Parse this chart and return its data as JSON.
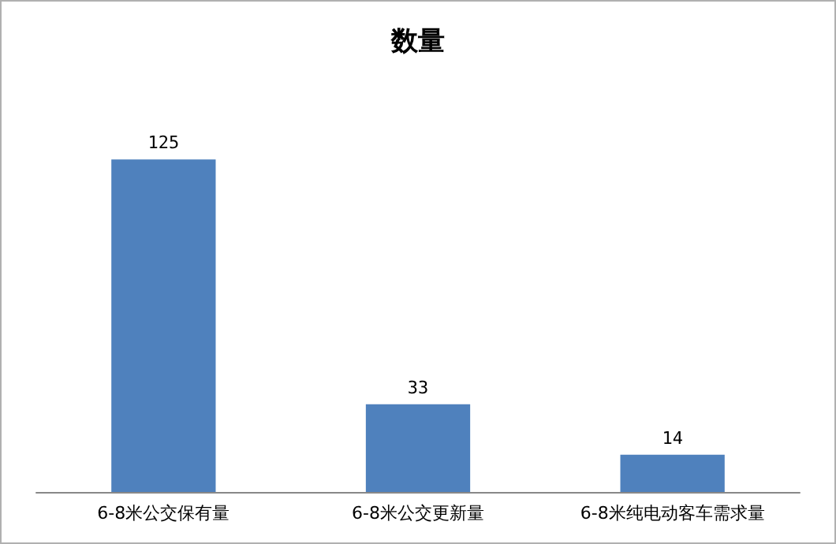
{
  "chart_data": {
    "type": "bar",
    "title": "数量",
    "categories": [
      "6-8米公交保有量",
      "6-8米公交更新量",
      "6-8米纯电动客车需求量"
    ],
    "values": [
      125,
      33,
      14
    ],
    "color": "#4f81bd",
    "data_labels": true
  }
}
